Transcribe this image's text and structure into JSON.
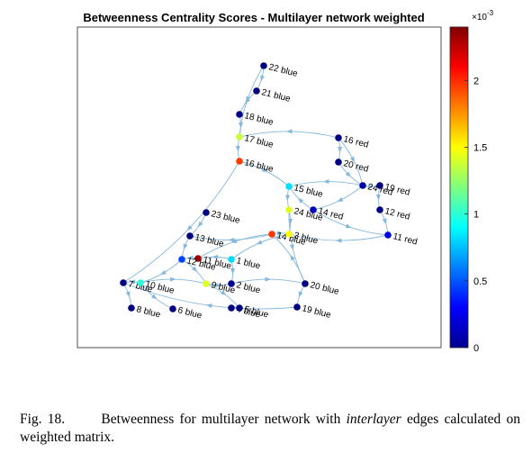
{
  "chart_data": {
    "type": "network",
    "title": "Betweenness Centrality Scores - Multilayer network weighted",
    "colorbar": {
      "min": 0,
      "max": 0.0024,
      "ticks": [
        "0",
        "0.5",
        "1",
        "1.5",
        "2"
      ],
      "tick_values": [
        0,
        0.5,
        1,
        1.5,
        2
      ],
      "exponent_label": "×10",
      "exponent_power": "-3",
      "colormap": "jet"
    },
    "nodes": [
      {
        "id": "22 blue",
        "label": "22 blue",
        "score": 0.0
      },
      {
        "id": "21 blue",
        "label": "21 blue",
        "score": 0.0
      },
      {
        "id": "18 blue",
        "label": "18 blue",
        "score": 2e-05
      },
      {
        "id": "17 blue",
        "label": "17 blue",
        "score": 0.00137
      },
      {
        "id": "16 blue",
        "label": "16 blue",
        "score": 0.00196
      },
      {
        "id": "15 blue",
        "label": "15 blue",
        "score": 0.00083
      },
      {
        "id": "24 blue",
        "label": "24 blue",
        "score": 0.00142
      },
      {
        "id": "14 blue",
        "label": "14 blue",
        "score": 0.00197
      },
      {
        "id": "3 blue",
        "label": "3 blue",
        "score": 0.0015
      },
      {
        "id": "23 blue",
        "label": "23 blue",
        "score": 0.0
      },
      {
        "id": "13 blue",
        "label": "13 blue",
        "score": 0.0
      },
      {
        "id": "11 blue",
        "label": "11 blue",
        "score": 0.00232
      },
      {
        "id": "12 blue",
        "label": "12 blue",
        "score": 0.00045
      },
      {
        "id": "1 blue",
        "label": "1 blue",
        "score": 0.00082
      },
      {
        "id": "7 blue",
        "label": "7 blue",
        "score": 0.0
      },
      {
        "id": "10 blue",
        "label": "10 blue",
        "score": 0.001
      },
      {
        "id": "9 blue",
        "label": "9 blue",
        "score": 0.00142
      },
      {
        "id": "2 blue",
        "label": "2 blue",
        "score": 5e-05
      },
      {
        "id": "8 blue",
        "label": "8 blue",
        "score": 0.0
      },
      {
        "id": "6 blue",
        "label": "6 blue",
        "score": 0.0
      },
      {
        "id": "4 blue",
        "label": "4 blue",
        "score": 0.0
      },
      {
        "id": "5 blue",
        "label": "5 blue",
        "score": 0.0
      },
      {
        "id": "20 blue",
        "label": "20 blue",
        "score": 0.0
      },
      {
        "id": "19 blue",
        "label": "19 blue",
        "score": 0.0
      },
      {
        "id": "16 red",
        "label": "16 red",
        "score": 0.0
      },
      {
        "id": "20 red",
        "label": "20 red",
        "score": 0.0
      },
      {
        "id": "24 red",
        "label": "24 red",
        "score": 0.0001
      },
      {
        "id": "19 red",
        "label": "19 red",
        "score": 0.0
      },
      {
        "id": "14 red",
        "label": "14 red",
        "score": 0.00014
      },
      {
        "id": "12 red",
        "label": "12 red",
        "score": 0.0
      },
      {
        "id": "11 red",
        "label": "11 red",
        "score": 0.00022
      }
    ],
    "edges": [
      [
        "22 blue",
        "21 blue"
      ],
      [
        "21 blue",
        "18 blue"
      ],
      [
        "18 blue",
        "17 blue"
      ],
      [
        "17 blue",
        "16 blue"
      ],
      [
        "16 blue",
        "15 blue"
      ],
      [
        "15 blue",
        "24 blue"
      ],
      [
        "24 blue",
        "3 blue"
      ],
      [
        "3 blue",
        "1 blue"
      ],
      [
        "14 blue",
        "3 blue"
      ],
      [
        "14 blue",
        "11 blue"
      ],
      [
        "1 blue",
        "2 blue"
      ],
      [
        "11 blue",
        "12 blue"
      ],
      [
        "12 blue",
        "10 blue"
      ],
      [
        "10 blue",
        "7 blue"
      ],
      [
        "10 blue",
        "9 blue"
      ],
      [
        "9 blue",
        "2 blue"
      ],
      [
        "23 blue",
        "13 blue"
      ],
      [
        "13 blue",
        "12 blue"
      ],
      [
        "7 blue",
        "8 blue"
      ],
      [
        "10 blue",
        "6 blue"
      ],
      [
        "9 blue",
        "5 blue"
      ],
      [
        "5 blue",
        "4 blue"
      ],
      [
        "2 blue",
        "20 blue"
      ],
      [
        "20 blue",
        "19 blue"
      ],
      [
        "16 red",
        "20 red"
      ],
      [
        "20 red",
        "24 red"
      ],
      [
        "16 red",
        "24 red"
      ],
      [
        "24 red",
        "19 red"
      ],
      [
        "24 red",
        "14 red"
      ],
      [
        "19 red",
        "12 red"
      ],
      [
        "12 red",
        "11 red"
      ],
      [
        "14 red",
        "11 red"
      ],
      [
        "11 red",
        "3 blue"
      ],
      [
        "16 red",
        "17 blue"
      ],
      [
        "14 red",
        "15 blue"
      ],
      [
        "24 red",
        "15 blue"
      ],
      [
        "16 blue",
        "7 blue"
      ],
      [
        "1 blue",
        "11 blue"
      ],
      [
        "12 blue",
        "9 blue"
      ],
      [
        "20 blue",
        "14 blue"
      ],
      [
        "19 blue",
        "7 blue"
      ],
      [
        "22 blue",
        "17 blue"
      ],
      [
        "14 blue",
        "13 blue"
      ],
      [
        "24 blue",
        "20 blue"
      ]
    ]
  },
  "caption": {
    "number": "Fig. 18.",
    "text_before": "Betweenness for multilayer network with",
    "emphasis": "interlayer",
    "text_after": "edges calculated on weighted matrix."
  }
}
